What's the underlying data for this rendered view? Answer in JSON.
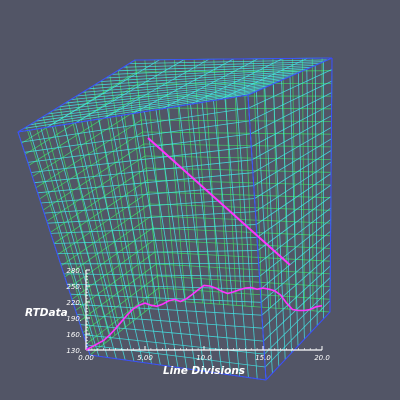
{
  "colors": {
    "background": "#525566",
    "grid_outer": "#44e6e6",
    "grid_inner": "#3fd86a",
    "grid_edge": "#3a3aff",
    "probe_line": "#ff33ff",
    "plot_line": "#ff33ff",
    "text": "#ffffff"
  },
  "chart_data": {
    "type": "line",
    "title": "",
    "xlabel": "Line Divisions",
    "ylabel": "RTData",
    "xlim": [
      0,
      20
    ],
    "ylim": [
      130,
      280
    ],
    "xticks": [
      "0.00",
      "5.00",
      "10.0",
      "15.0",
      "20.0"
    ],
    "yticks": [
      "130.",
      "160.",
      "190.",
      "220.",
      "250.",
      "280."
    ],
    "series": [
      {
        "name": "",
        "x": [
          0,
          0.5,
          1,
          1.5,
          2,
          2.5,
          3,
          3.5,
          4,
          4.5,
          5,
          5.5,
          6,
          6.5,
          7,
          7.5,
          8,
          8.5,
          9,
          9.5,
          10,
          10.5,
          11,
          11.5,
          12,
          12.5,
          13,
          13.5,
          14,
          14.5,
          15,
          15.5,
          16,
          16.5,
          17,
          17.5,
          18,
          18.5,
          19,
          19.5,
          20
        ],
        "y": [
          130,
          136,
          142,
          148,
          158,
          170,
          183,
          196,
          207,
          214,
          218,
          214,
          212,
          216,
          222,
          225,
          221,
          226,
          234,
          243,
          251,
          250,
          246,
          240,
          236,
          239,
          243,
          246,
          247,
          244,
          246,
          244,
          241,
          233,
          218,
          206,
          204,
          204,
          206,
          211,
          213
        ]
      }
    ]
  }
}
